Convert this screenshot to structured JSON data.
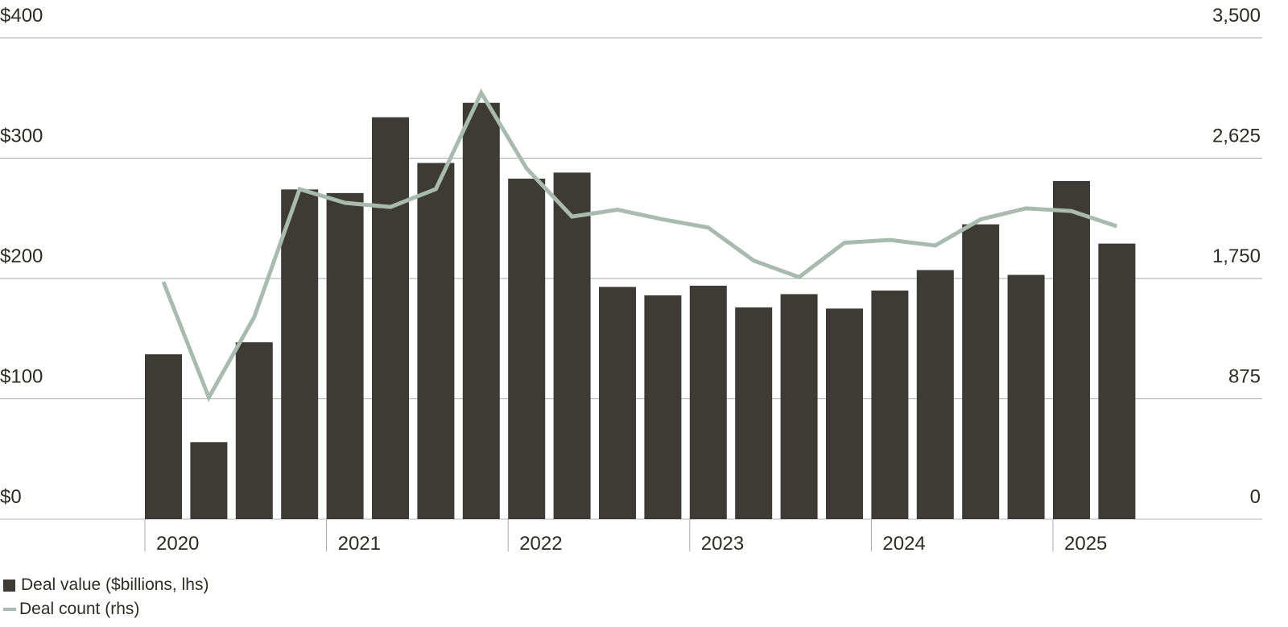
{
  "chart_data": {
    "type": "bar",
    "x": [
      "2020 Q1",
      "2020 Q2",
      "2020 Q3",
      "2020 Q4",
      "2021 Q1",
      "2021 Q2",
      "2021 Q3",
      "2021 Q4",
      "2022 Q1",
      "2022 Q2",
      "2022 Q3",
      "2022 Q4",
      "2023 Q1",
      "2023 Q2",
      "2023 Q3",
      "2023 Q4",
      "2024 Q1",
      "2024 Q2",
      "2024 Q3",
      "2024 Q4",
      "2025 Q1",
      "2025 Q2"
    ],
    "x_tick_labels": [
      "2020",
      "2021",
      "2022",
      "2023",
      "2024",
      "2025"
    ],
    "series": [
      {
        "name": "Deal value ($billions, lhs)",
        "type": "bar",
        "axis": "left",
        "color": "#3e3a35",
        "values": [
          137,
          64,
          147,
          274,
          271,
          334,
          296,
          346,
          283,
          288,
          193,
          186,
          194,
          176,
          187,
          175,
          190,
          207,
          245,
          203,
          281,
          229
        ]
      },
      {
        "name": "Deal count (rhs)",
        "type": "line",
        "axis": "right",
        "color": "#a8bbae",
        "values": [
          1725,
          885,
          1470,
          2400,
          2300,
          2270,
          2400,
          3100,
          2550,
          2200,
          2250,
          2180,
          2120,
          1880,
          1760,
          2010,
          2030,
          1990,
          2180,
          2260,
          2240,
          2130
        ]
      }
    ],
    "y_left": {
      "ticks": [
        "$0",
        "$100",
        "$200",
        "$300",
        "$400"
      ],
      "range": [
        0,
        400
      ]
    },
    "y_right": {
      "ticks": [
        "0",
        "875",
        "1,750",
        "2,625",
        "3,500"
      ],
      "range": [
        0,
        3500
      ]
    },
    "grid": true,
    "legend_position": "bottom-left"
  }
}
